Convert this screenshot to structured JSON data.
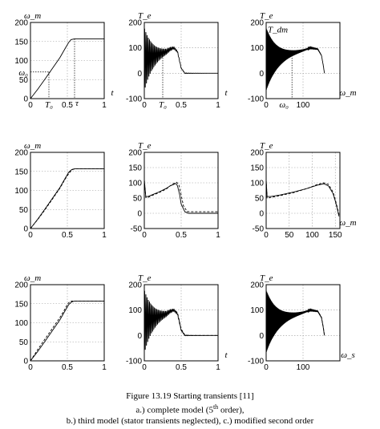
{
  "caption": {
    "line1": "Figure 13.19 Starting transients [11]",
    "line2_pre": "a.) complete model (5",
    "line2_sup": "th",
    "line2_post": " order),",
    "line3": "b.) third model (stator transients neglected), c.) modified second order"
  },
  "chart_data": [
    {
      "id": "a-speed",
      "type": "line",
      "row": 0,
      "col": 0,
      "ylabel": "ω_m",
      "xlabel": "t",
      "xlim": [
        0,
        1
      ],
      "ylim": [
        0,
        200
      ],
      "xticks": [
        0,
        0.5,
        1
      ],
      "yticks": [
        0,
        50,
        100,
        150,
        200
      ],
      "annotations": [
        {
          "text": "ω₀",
          "at": [
            0,
            70
          ]
        },
        {
          "text": "T₀",
          "at": [
            0.25,
            0
          ]
        },
        {
          "text": "τ",
          "at": [
            0.5,
            0
          ]
        }
      ],
      "series": [
        {
          "style": "solid",
          "x": [
            0,
            0.1,
            0.2,
            0.3,
            0.4,
            0.48,
            0.52,
            0.55,
            0.6,
            1.0
          ],
          "y": [
            0,
            25,
            52,
            80,
            108,
            135,
            148,
            155,
            157,
            157
          ]
        }
      ]
    },
    {
      "id": "a-torque-time",
      "type": "line",
      "row": 0,
      "col": 1,
      "ylabel": "T_e",
      "xlabel": "t",
      "xlim": [
        0,
        1
      ],
      "ylim": [
        -100,
        200
      ],
      "xticks": [
        0,
        0.5,
        1
      ],
      "yticks": [
        -100,
        0,
        100,
        200
      ],
      "annotations": [
        {
          "text": "T₀",
          "at": [
            0.25,
            -100
          ]
        }
      ],
      "series": [
        {
          "style": "solid",
          "kind": "osc_time",
          "x": [
            0,
            0.1,
            0.2,
            0.3,
            0.35,
            0.4,
            0.45,
            0.5,
            0.55,
            1.0
          ],
          "y": [
            55,
            65,
            75,
            85,
            95,
            100,
            85,
            20,
            0,
            0
          ],
          "amp_start": 130,
          "decay": 0.12,
          "cycles": 60
        }
      ]
    },
    {
      "id": "a-torque-speed",
      "type": "line",
      "row": 0,
      "col": 2,
      "ylabel": "T_e",
      "xlabel": "ω_m",
      "xlim": [
        0,
        200
      ],
      "ylim": [
        -100,
        200
      ],
      "xticks": [
        0,
        100
      ],
      "yticks": [
        -100,
        0,
        100,
        200
      ],
      "annotations": [
        {
          "text": "T_dm",
          "at": [
            0,
            160
          ]
        },
        {
          "text": "T_e",
          "at": [
            5,
            60
          ]
        },
        {
          "text": "ω₀",
          "at": [
            70,
            -100
          ]
        }
      ],
      "series": [
        {
          "style": "solid",
          "kind": "osc_speed",
          "x": [
            0,
            20,
            40,
            60,
            80,
            100,
            120,
            140,
            150,
            155,
            158
          ],
          "y": [
            55,
            60,
            67,
            75,
            82,
            90,
            100,
            95,
            70,
            30,
            0
          ],
          "amp_start": 130,
          "decay_w": 30,
          "cycles": 40
        }
      ]
    },
    {
      "id": "b-speed",
      "type": "line",
      "row": 1,
      "col": 0,
      "ylabel": "ω_m",
      "xlabel": "",
      "xlim": [
        0,
        1
      ],
      "ylim": [
        0,
        200
      ],
      "xticks": [
        0,
        0.5,
        1
      ],
      "yticks": [
        0,
        50,
        100,
        150,
        200
      ],
      "series": [
        {
          "style": "solid",
          "x": [
            0,
            0.1,
            0.2,
            0.3,
            0.4,
            0.48,
            0.52,
            0.56,
            0.6,
            1.0
          ],
          "y": [
            0,
            25,
            52,
            80,
            108,
            135,
            148,
            155,
            157,
            157
          ]
        },
        {
          "style": "dashed",
          "x": [
            0,
            0.1,
            0.2,
            0.3,
            0.4,
            0.48,
            0.53,
            0.57,
            0.61,
            1.0
          ],
          "y": [
            0,
            24,
            50,
            78,
            106,
            133,
            147,
            155,
            157,
            157
          ]
        }
      ]
    },
    {
      "id": "b-torque-time",
      "type": "line",
      "row": 1,
      "col": 1,
      "ylabel": "T_e",
      "xlabel": "",
      "xlim": [
        0,
        1
      ],
      "ylim": [
        -50,
        200
      ],
      "xticks": [
        0,
        0.5,
        1
      ],
      "yticks": [
        -50,
        0,
        50,
        100,
        150,
        200
      ],
      "series": [
        {
          "style": "solid",
          "x": [
            0,
            0.02,
            0.05,
            0.1,
            0.2,
            0.3,
            0.35,
            0.4,
            0.43,
            0.45,
            0.48,
            0.5,
            0.55,
            0.6,
            1.0
          ],
          "y": [
            110,
            55,
            55,
            60,
            70,
            82,
            90,
            95,
            98,
            90,
            60,
            30,
            5,
            0,
            0
          ]
        },
        {
          "style": "dashed",
          "x": [
            0,
            0.02,
            0.05,
            0.1,
            0.2,
            0.3,
            0.35,
            0.4,
            0.44,
            0.47,
            0.5,
            0.53,
            0.58,
            0.62,
            1.0
          ],
          "y": [
            110,
            52,
            52,
            58,
            68,
            80,
            90,
            98,
            102,
            92,
            60,
            25,
            6,
            5,
            5
          ]
        }
      ]
    },
    {
      "id": "b-torque-speed",
      "type": "line",
      "row": 1,
      "col": 2,
      "ylabel": "T_e",
      "xlabel": "ω_m",
      "xlim": [
        0,
        160
      ],
      "ylim": [
        -50,
        200
      ],
      "xticks": [
        0,
        50,
        100,
        150
      ],
      "yticks": [
        -50,
        0,
        50,
        100,
        150,
        200
      ],
      "series": [
        {
          "style": "solid",
          "x": [
            0,
            2,
            10,
            30,
            60,
            90,
            110,
            125,
            135,
            145,
            150,
            155,
            158
          ],
          "y": [
            110,
            55,
            55,
            60,
            70,
            82,
            92,
            97,
            90,
            65,
            40,
            10,
            -10
          ]
        },
        {
          "style": "dashed",
          "x": [
            0,
            2,
            10,
            30,
            60,
            90,
            110,
            125,
            135,
            145,
            150,
            155,
            158
          ],
          "y": [
            110,
            50,
            52,
            58,
            68,
            82,
            94,
            100,
            95,
            70,
            45,
            15,
            -5
          ]
        }
      ]
    },
    {
      "id": "c-speed",
      "type": "line",
      "row": 2,
      "col": 0,
      "ylabel": "ω_m",
      "xlabel": "",
      "xlim": [
        0,
        1
      ],
      "ylim": [
        0,
        200
      ],
      "xticks": [
        0,
        0.5,
        1
      ],
      "yticks": [
        0,
        50,
        100,
        150,
        200
      ],
      "series": [
        {
          "style": "solid",
          "x": [
            0,
            0.1,
            0.2,
            0.3,
            0.4,
            0.48,
            0.52,
            0.56,
            0.6,
            1.0
          ],
          "y": [
            0,
            25,
            52,
            80,
            108,
            135,
            148,
            155,
            157,
            157
          ]
        },
        {
          "style": "dashed",
          "x": [
            0,
            0.1,
            0.2,
            0.3,
            0.4,
            0.45,
            0.5,
            0.53,
            0.56,
            1.0
          ],
          "y": [
            0,
            30,
            58,
            86,
            114,
            130,
            148,
            155,
            157,
            157
          ]
        }
      ]
    },
    {
      "id": "c-torque-time",
      "type": "line",
      "row": 2,
      "col": 1,
      "ylabel": "T_e",
      "xlabel": "t",
      "xlim": [
        0,
        1
      ],
      "ylim": [
        -100,
        200
      ],
      "xticks": [
        0,
        0.5,
        1
      ],
      "yticks": [
        -100,
        0,
        100,
        200
      ],
      "series": [
        {
          "style": "solid",
          "kind": "osc_time",
          "x": [
            0,
            0.1,
            0.2,
            0.3,
            0.35,
            0.4,
            0.45,
            0.5,
            0.55,
            1.0
          ],
          "y": [
            55,
            65,
            75,
            85,
            95,
            100,
            85,
            20,
            0,
            0
          ],
          "amp_start": 130,
          "decay": 0.12,
          "cycles": 60
        },
        {
          "style": "dashed",
          "x": [
            0,
            0.05,
            0.1,
            0.2,
            0.3,
            0.35,
            0.4,
            0.45,
            0.5,
            0.55,
            0.6,
            1.0
          ],
          "y": [
            40,
            55,
            62,
            72,
            84,
            94,
            102,
            90,
            25,
            2,
            0,
            0
          ]
        }
      ]
    },
    {
      "id": "c-torque-speed",
      "type": "line",
      "row": 2,
      "col": 2,
      "ylabel": "T_e",
      "xlabel": "ω_s",
      "xlim": [
        0,
        200
      ],
      "ylim": [
        -100,
        200
      ],
      "xticks": [
        0,
        100
      ],
      "yticks": [
        -100,
        0,
        100,
        200
      ],
      "series": [
        {
          "style": "solid",
          "kind": "osc_speed",
          "x": [
            0,
            20,
            40,
            60,
            80,
            100,
            120,
            140,
            150,
            155,
            158
          ],
          "y": [
            55,
            60,
            67,
            75,
            82,
            90,
            100,
            95,
            70,
            30,
            0
          ],
          "amp_start": 130,
          "decay_w": 30,
          "cycles": 40
        },
        {
          "style": "dashed",
          "x": [
            0,
            20,
            40,
            60,
            80,
            100,
            120,
            140,
            150,
            155,
            158
          ],
          "y": [
            50,
            58,
            66,
            74,
            82,
            92,
            102,
            96,
            72,
            32,
            0
          ]
        }
      ]
    }
  ]
}
